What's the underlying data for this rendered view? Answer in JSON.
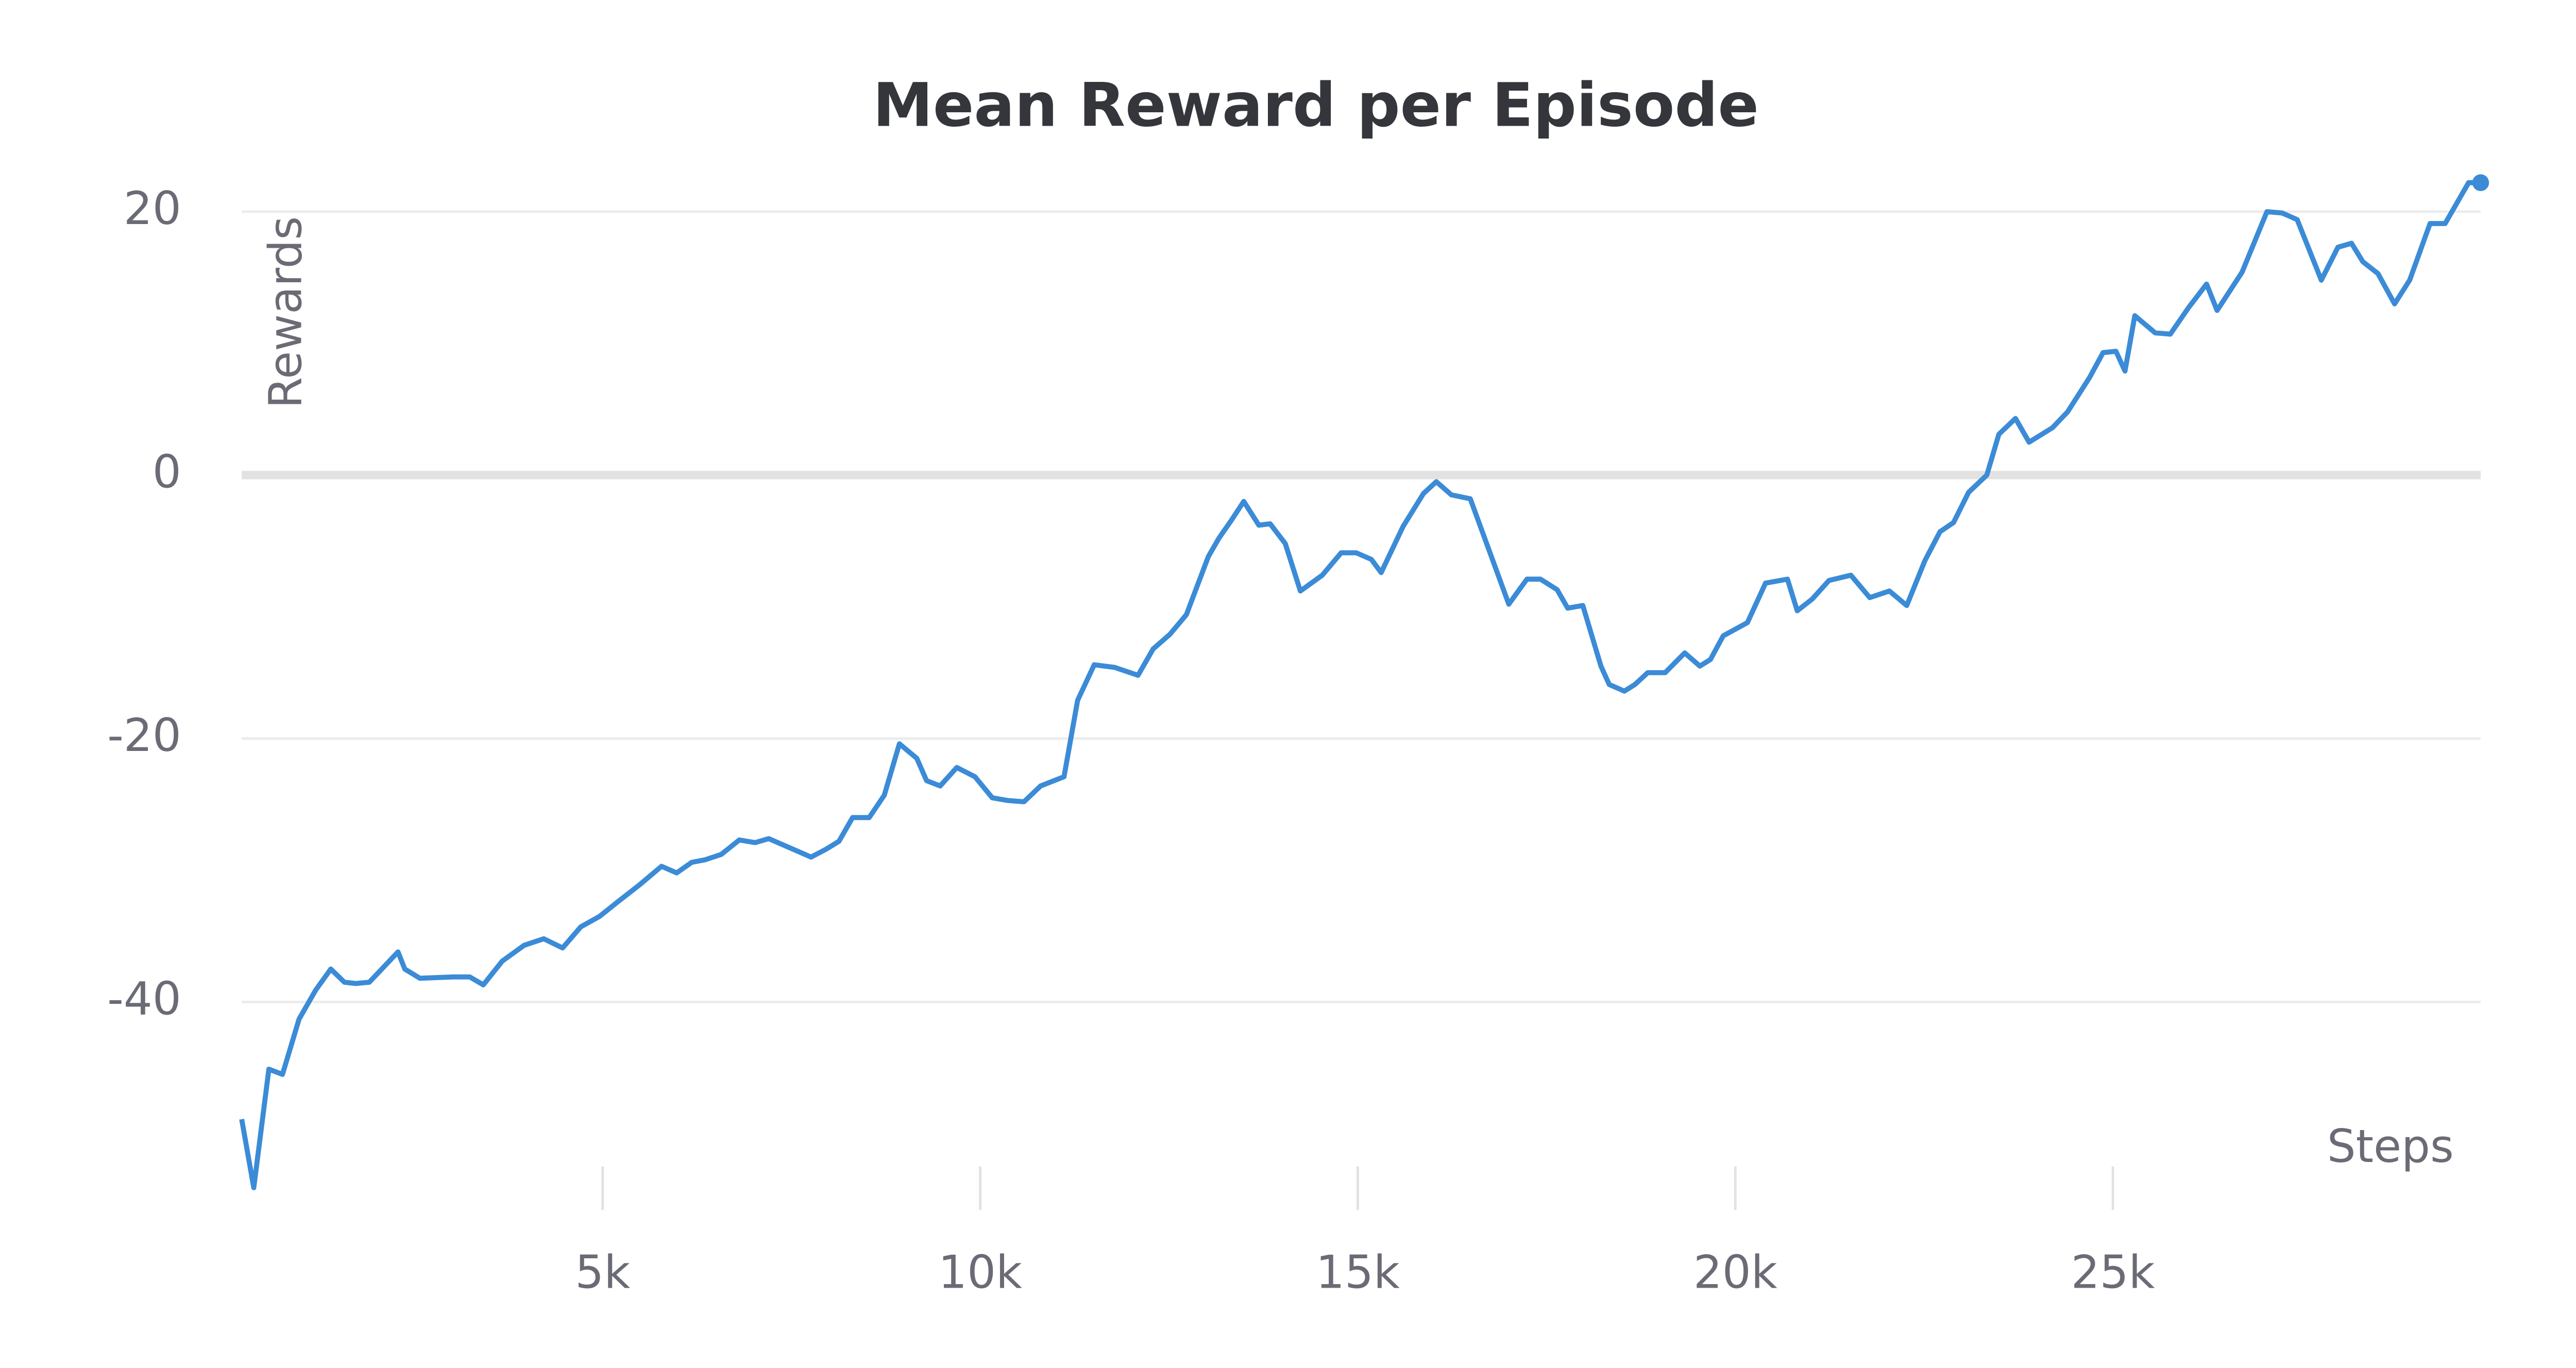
{
  "chart_data": {
    "type": "line",
    "title": "Mean Reward per Episode",
    "y_label": "Rewards",
    "x_label": "Steps",
    "x": [
      220,
      380,
      580,
      760,
      980,
      1200,
      1400,
      1580,
      1730,
      1910,
      2290,
      2380,
      2580,
      3020,
      3240,
      3420,
      3670,
      3960,
      4220,
      4470,
      4710,
      4960,
      5200,
      5490,
      5780,
      5980,
      6180,
      6360,
      6570,
      6810,
      7020,
      7200,
      7760,
      7960,
      8130,
      8310,
      8530,
      8730,
      8930,
      9160,
      9290,
      9470,
      9690,
      9930,
      10160,
      10360,
      10580,
      10800,
      11110,
      11290,
      11510,
      11780,
      12090,
      12290,
      12510,
      12730,
      13020,
      13160,
      13330,
      13490,
      13690,
      13840,
      14040,
      14240,
      14530,
      14780,
      14980,
      15180,
      15310,
      15600,
      15870,
      16040,
      16240,
      16490,
      17000,
      17240,
      17420,
      17640,
      17780,
      17980,
      18220,
      18330,
      18530,
      18670,
      18840,
      19070,
      19330,
      19530,
      19670,
      19840,
      20160,
      20400,
      20690,
      20820,
      21020,
      21240,
      21530,
      21780,
      22040,
      22270,
      22510,
      22710,
      22890,
      23090,
      23330,
      23490,
      23710,
      23890,
      24200,
      24400,
      24690,
      24870,
      25040,
      25160,
      25290,
      25560,
      25760,
      26000,
      26240,
      26380,
      26710,
      27040,
      27240,
      27440,
      27760,
      27980,
      28160,
      28310,
      28510,
      28730,
      28930,
      29200,
      29400,
      29710,
      29870
    ],
    "series": [
      {
        "name": "Mean Reward",
        "color": "#3b8bd7",
        "values": [
          -48.9,
          -54.1,
          -45.1,
          -45.5,
          -41.3,
          -39.1,
          -37.5,
          -38.5,
          -38.6,
          -38.5,
          -36.2,
          -37.5,
          -38.2,
          -38.1,
          -38.1,
          -38.7,
          -36.9,
          -35.7,
          -35.2,
          -35.9,
          -34.3,
          -33.5,
          -32.4,
          -31.1,
          -29.7,
          -30.2,
          -29.4,
          -29.2,
          -28.8,
          -27.7,
          -27.9,
          -27.6,
          -29.0,
          -28.4,
          -27.8,
          -26.0,
          -26.0,
          -24.3,
          -20.4,
          -21.5,
          -23.2,
          -23.6,
          -22.2,
          -22.9,
          -24.5,
          -24.7,
          -24.8,
          -23.6,
          -22.9,
          -17.1,
          -14.4,
          -14.6,
          -15.2,
          -13.2,
          -12.1,
          -10.6,
          -6.2,
          -4.8,
          -3.4,
          -2.0,
          -3.8,
          -3.7,
          -5.2,
          -8.8,
          -7.6,
          -5.9,
          -5.9,
          -6.4,
          -7.4,
          -3.9,
          -1.4,
          -0.5,
          -1.5,
          -1.8,
          -9.8,
          -7.9,
          -7.9,
          -8.7,
          -10.1,
          -9.9,
          -14.5,
          -15.9,
          -16.4,
          -15.9,
          -15.0,
          -15.0,
          -13.5,
          -14.5,
          -14.0,
          -12.2,
          -11.2,
          -8.2,
          -7.9,
          -10.3,
          -9.4,
          -8.0,
          -7.6,
          -9.3,
          -8.8,
          -9.9,
          -6.5,
          -4.3,
          -3.6,
          -1.3,
          0,
          3.1,
          4.3,
          2.5,
          3.6,
          4.8,
          7.4,
          9.3,
          9.4,
          7.9,
          12.1,
          10.8,
          10.7,
          12.7,
          14.5,
          12.5,
          15.4,
          20.0,
          19.9,
          19.4,
          14.8,
          17.3,
          17.6,
          16.2,
          15.3,
          13.0,
          14.8,
          19.1,
          19.1,
          22.2,
          22.2
        ]
      }
    ],
    "xlim": [
      220,
      29870
    ],
    "ylim": [
      -55,
      23
    ],
    "xticks": [
      {
        "value": 5000,
        "label": "5k"
      },
      {
        "value": 10000,
        "label": "10k"
      },
      {
        "value": 15000,
        "label": "15k"
      },
      {
        "value": 20000,
        "label": "20k"
      },
      {
        "value": 25000,
        "label": "25k"
      }
    ],
    "yticks": [
      -40,
      -20,
      0,
      20
    ],
    "grid": true
  }
}
